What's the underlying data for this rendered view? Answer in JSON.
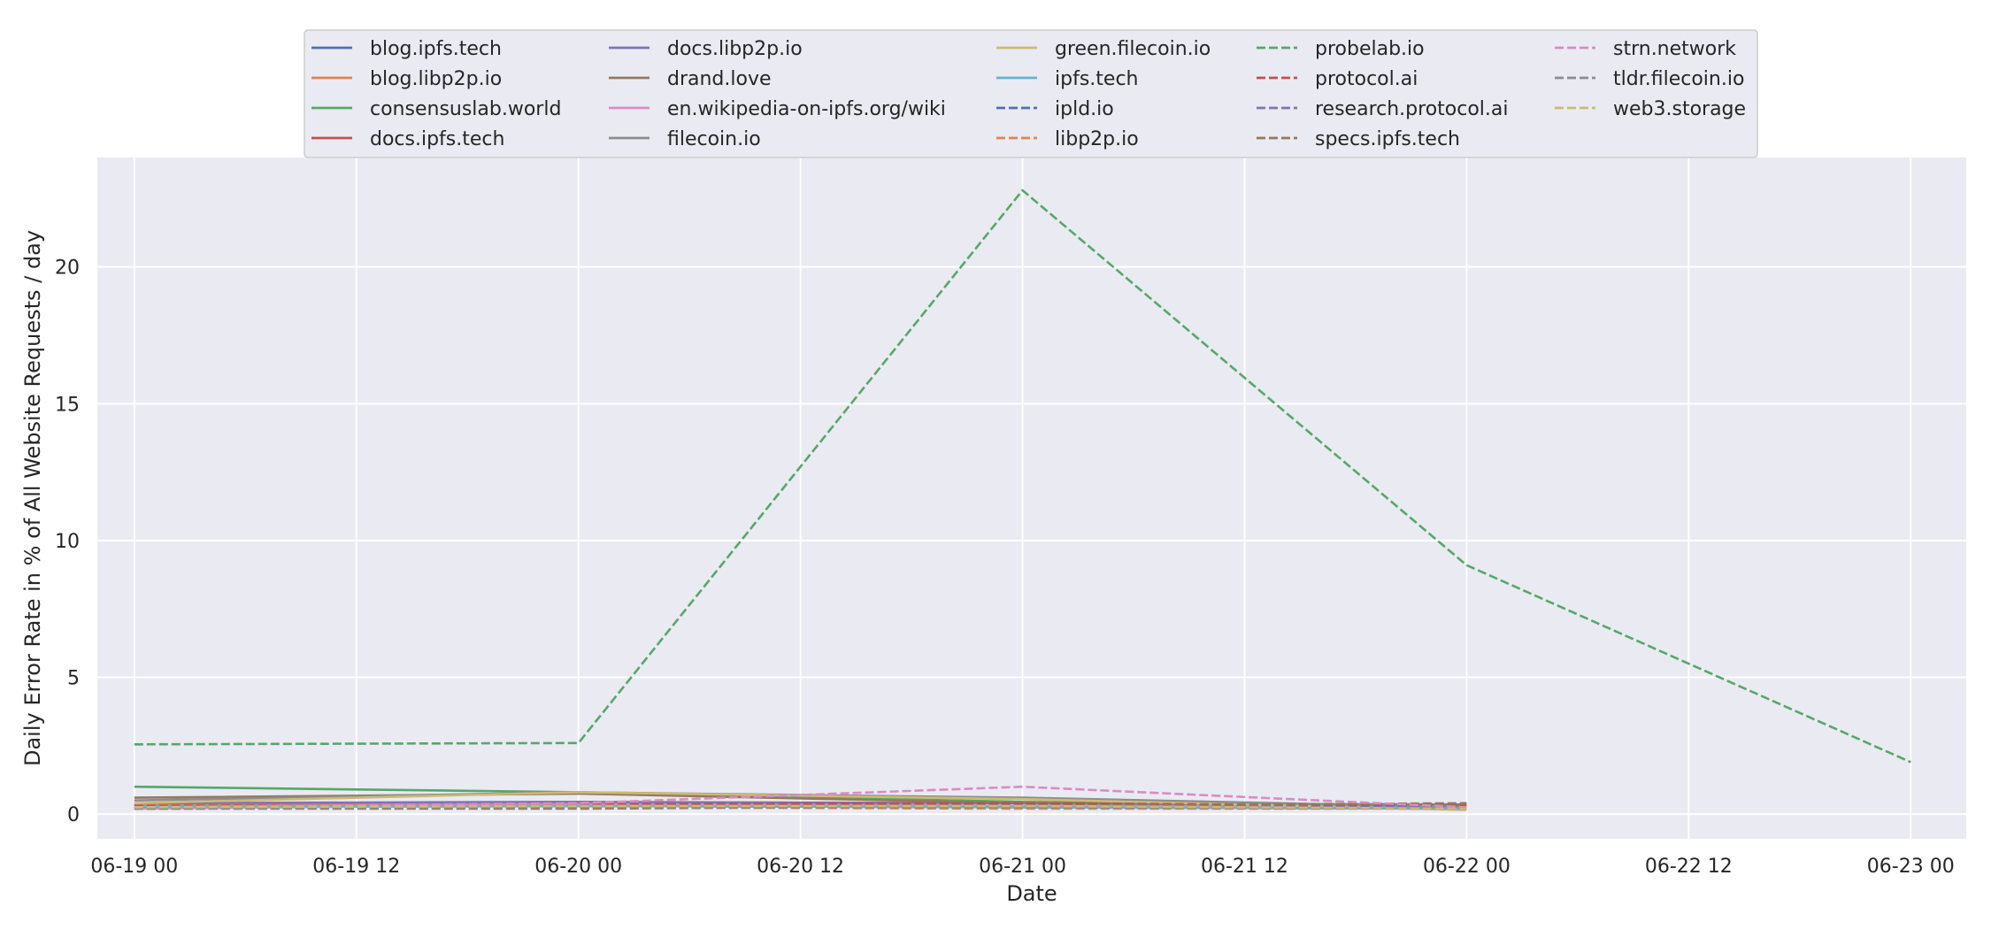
{
  "chart_data": {
    "type": "line",
    "xlabel": "Date",
    "ylabel": "Daily Error Rate in % of All Website Requests / day",
    "x_ticks": [
      "06-19 00",
      "06-19 12",
      "06-20 00",
      "06-20 12",
      "06-21 00",
      "06-21 12",
      "06-22 00",
      "06-22 12",
      "06-23 00"
    ],
    "x_range": [
      "2023-06-18 22:00",
      "2023-06-23 03:00"
    ],
    "y_ticks": [
      0,
      5,
      10,
      15,
      20
    ],
    "ylim": [
      -0.9,
      24.0
    ],
    "grid": true,
    "legend": "top-center",
    "x": [
      "2023-06-19 00:00",
      "2023-06-20 00:00",
      "2023-06-21 00:00",
      "2023-06-22 00:00",
      "2023-06-23 00:00"
    ],
    "series": [
      {
        "name": "blog.ipfs.tech",
        "color": "#4c72b0",
        "dash": "solid",
        "values": [
          0.3,
          0.3,
          0.25,
          0.22,
          null
        ]
      },
      {
        "name": "blog.libp2p.io",
        "color": "#dd8452",
        "dash": "solid",
        "values": [
          0.35,
          0.4,
          0.3,
          0.25,
          null
        ]
      },
      {
        "name": "consensuslab.world",
        "color": "#55a868",
        "dash": "solid",
        "values": [
          1.0,
          0.8,
          0.45,
          0.3,
          null
        ]
      },
      {
        "name": "docs.ipfs.tech",
        "color": "#c44e52",
        "dash": "solid",
        "values": [
          0.25,
          0.3,
          0.25,
          0.2,
          null
        ]
      },
      {
        "name": "docs.libp2p.io",
        "color": "#8172b3",
        "dash": "solid",
        "values": [
          0.4,
          0.45,
          0.4,
          0.3,
          null
        ]
      },
      {
        "name": "drand.love",
        "color": "#937860",
        "dash": "solid",
        "values": [
          0.6,
          0.75,
          0.4,
          0.35,
          null
        ]
      },
      {
        "name": "en.wikipedia-on-ipfs.org/wiki",
        "color": "#da8bc3",
        "dash": "solid",
        "values": [
          0.2,
          0.35,
          0.3,
          0.25,
          null
        ]
      },
      {
        "name": "filecoin.io",
        "color": "#8c8c8c",
        "dash": "solid",
        "values": [
          0.5,
          0.8,
          0.6,
          0.25,
          null
        ]
      },
      {
        "name": "green.filecoin.io",
        "color": "#ccb974",
        "dash": "solid",
        "values": [
          0.4,
          0.8,
          0.55,
          0.15,
          null
        ]
      },
      {
        "name": "ipfs.tech",
        "color": "#64b5cd",
        "dash": "solid",
        "values": [
          0.3,
          0.3,
          0.25,
          0.2,
          null
        ]
      },
      {
        "name": "ipld.io",
        "color": "#4c72b0",
        "dash": "dashed",
        "values": [
          0.25,
          0.3,
          0.35,
          0.25,
          null
        ]
      },
      {
        "name": "libp2p.io",
        "color": "#dd8452",
        "dash": "dashed",
        "values": [
          0.2,
          0.25,
          0.2,
          0.2,
          null
        ]
      },
      {
        "name": "probelab.io",
        "color": "#55a868",
        "dash": "dashed",
        "values": [
          2.55,
          2.6,
          22.8,
          9.1,
          1.9
        ]
      },
      {
        "name": "protocol.ai",
        "color": "#c44e52",
        "dash": "dashed",
        "values": [
          0.3,
          0.35,
          0.4,
          0.3,
          null
        ]
      },
      {
        "name": "research.protocol.ai",
        "color": "#8172b3",
        "dash": "dashed",
        "values": [
          0.25,
          0.3,
          0.3,
          0.25,
          null
        ]
      },
      {
        "name": "specs.ipfs.tech",
        "color": "#937860",
        "dash": "dashed",
        "values": [
          0.2,
          0.2,
          0.3,
          0.4,
          null
        ]
      },
      {
        "name": "strn.network",
        "color": "#da8bc3",
        "dash": "dashed",
        "values": [
          0.25,
          0.4,
          1.0,
          0.25,
          null
        ]
      },
      {
        "name": "tldr.filecoin.io",
        "color": "#8c8c8c",
        "dash": "dashed",
        "values": [
          0.2,
          0.25,
          0.25,
          0.2,
          null
        ]
      },
      {
        "name": "web3.storage",
        "color": "#ccb974",
        "dash": "dashed",
        "values": [
          0.25,
          0.3,
          0.3,
          0.2,
          null
        ]
      }
    ]
  }
}
